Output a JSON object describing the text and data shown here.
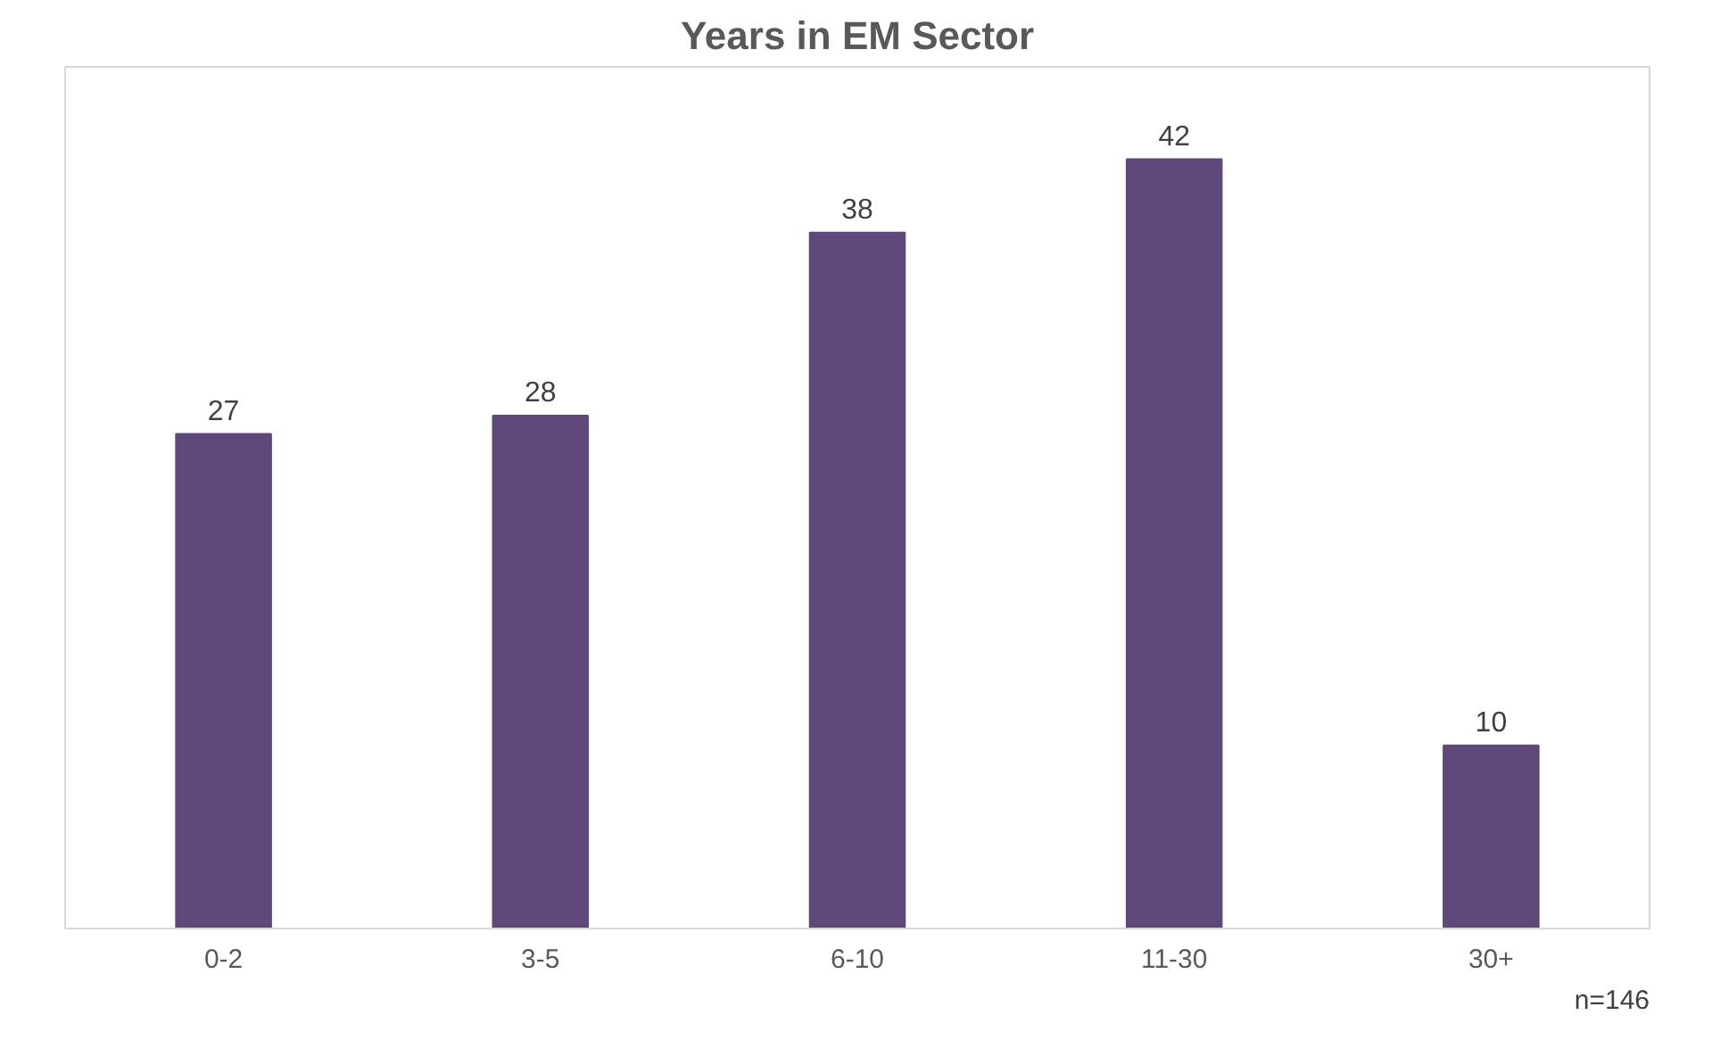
{
  "chart_data": {
    "type": "bar",
    "title": "Years in EM Sector",
    "categories": [
      "0-2",
      "3-5",
      "6-10",
      "11-30",
      "30+"
    ],
    "values": [
      27,
      28,
      38,
      42,
      10
    ],
    "color": "#5f497a",
    "data_labels": true,
    "grid": false,
    "annotations": [
      "n=146"
    ]
  }
}
